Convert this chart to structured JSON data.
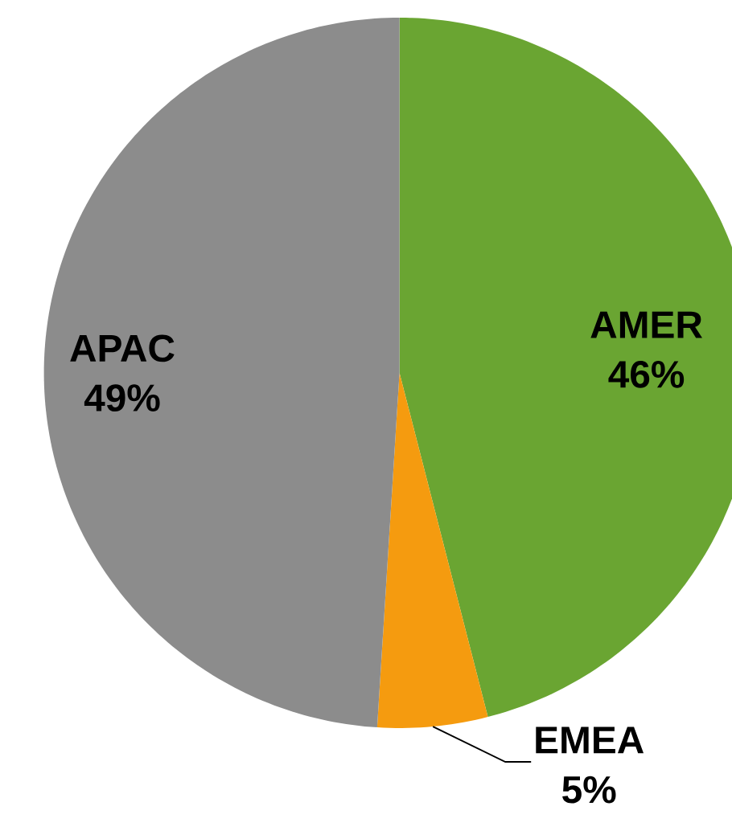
{
  "chart_data": {
    "type": "pie",
    "categories": [
      "AMER",
      "EMEA",
      "APAC"
    ],
    "values": [
      46,
      5,
      49
    ],
    "value_labels": [
      "46%",
      "5%",
      "49%"
    ],
    "colors": [
      "#6aa532",
      "#f59b0f",
      "#8c8c8c"
    ]
  }
}
